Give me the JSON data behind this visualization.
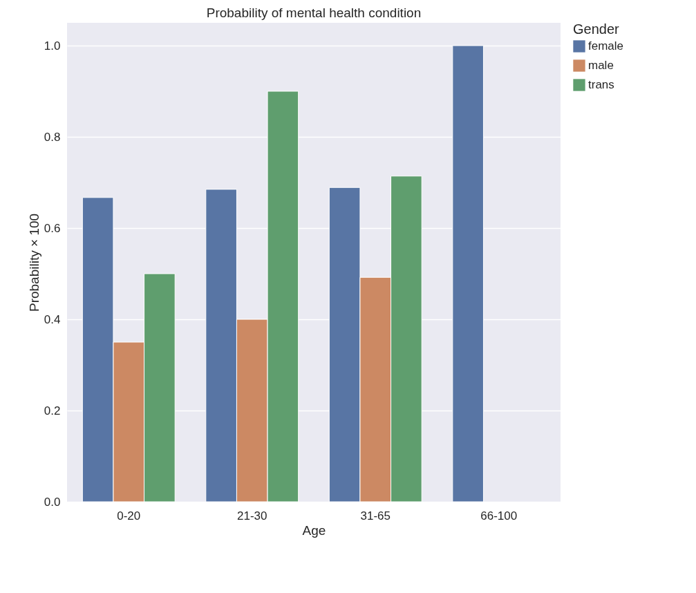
{
  "chart_data": {
    "type": "bar",
    "title": "Probability of mental health condition",
    "xlabel": "Age",
    "ylabel": "Probability × 100",
    "legend_title": "Gender",
    "categories": [
      "0-20",
      "21-30",
      "31-65",
      "66-100"
    ],
    "series": [
      {
        "name": "female",
        "color": "#5875a4",
        "values": [
          0.667,
          0.685,
          0.689,
          1.0
        ]
      },
      {
        "name": "male",
        "color": "#cc8963",
        "values": [
          0.35,
          0.4,
          0.492,
          null
        ]
      },
      {
        "name": "trans",
        "color": "#5f9e6e",
        "values": [
          0.5,
          0.9,
          0.714,
          null
        ]
      }
    ],
    "ylim": [
      0,
      1.05
    ],
    "yticks": [
      {
        "value": 0,
        "label": "0.0"
      },
      0.2,
      0.4,
      0.6,
      0.8,
      {
        "value": 1,
        "label": "1.0"
      }
    ],
    "grid": "y",
    "legend": "right"
  }
}
